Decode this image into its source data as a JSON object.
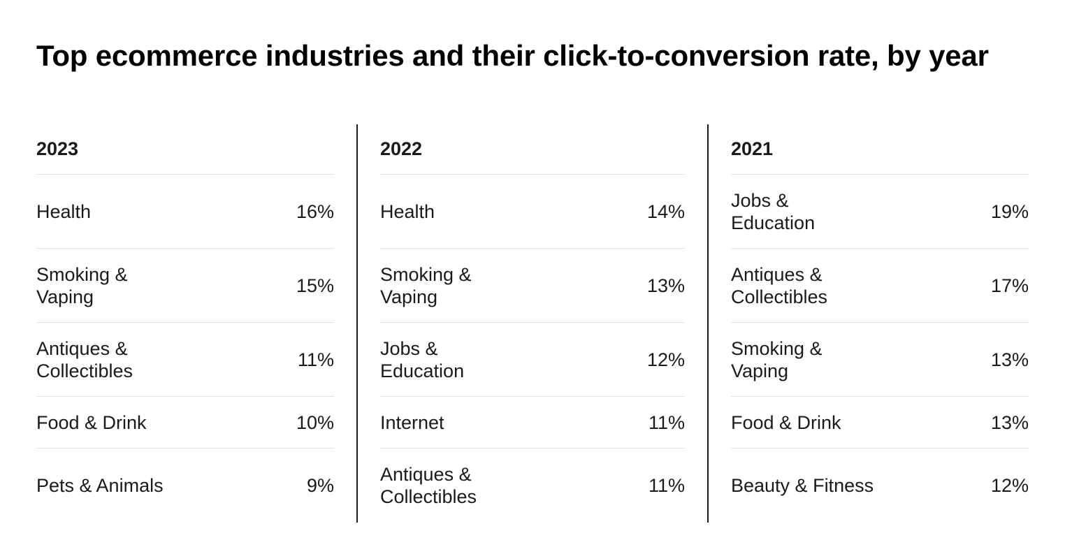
{
  "chart_data": {
    "type": "table",
    "title": "Top ecommerce industries and their click-to-conversion rate, by year",
    "columns": [
      {
        "year": "2023",
        "rows": [
          {
            "label": "Health",
            "value": "16%"
          },
          {
            "label": "Smoking &\nVaping",
            "value": "15%"
          },
          {
            "label": "Antiques &\nCollectibles",
            "value": "11%"
          },
          {
            "label": "Food & Drink",
            "value": "10%"
          },
          {
            "label": "Pets & Animals",
            "value": "9%"
          }
        ]
      },
      {
        "year": "2022",
        "rows": [
          {
            "label": "Health",
            "value": "14%"
          },
          {
            "label": "Smoking &\nVaping",
            "value": "13%"
          },
          {
            "label": "Jobs &\nEducation",
            "value": "12%"
          },
          {
            "label": "Internet",
            "value": "11%"
          },
          {
            "label": "Antiques &\nCollectibles",
            "value": "11%"
          }
        ]
      },
      {
        "year": "2021",
        "rows": [
          {
            "label": "Jobs &\nEducation",
            "value": "19%"
          },
          {
            "label": "Antiques &\nCollectibles",
            "value": "17%"
          },
          {
            "label": "Smoking &\nVaping",
            "value": "13%"
          },
          {
            "label": "Food & Drink",
            "value": "13%"
          },
          {
            "label": "Beauty & Fitness",
            "value": "12%"
          }
        ]
      }
    ]
  }
}
